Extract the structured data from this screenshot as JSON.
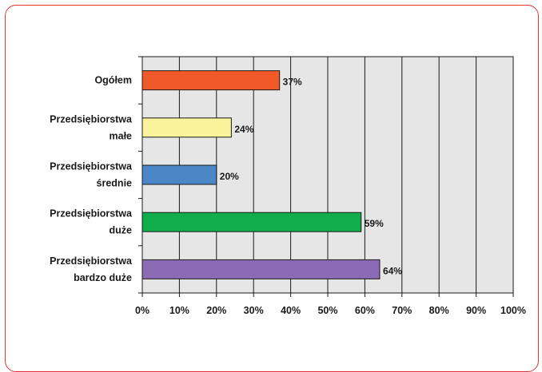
{
  "chart_data": {
    "type": "bar",
    "orientation": "horizontal",
    "categories": [
      [
        "Ogółem"
      ],
      [
        "Przedsiębiorstwa",
        "małe"
      ],
      [
        "Przedsiębiorstwa",
        "średnie"
      ],
      [
        "Przedsiębiorstwa",
        "duże"
      ],
      [
        "Przedsiębiorstwa",
        "bardzo duże"
      ]
    ],
    "values": [
      37,
      24,
      20,
      59,
      64
    ],
    "value_labels": [
      "37%",
      "24%",
      "20%",
      "59%",
      "64%"
    ],
    "colors": [
      "#f05a28",
      "#fbf49c",
      "#4b86c6",
      "#0fad4b",
      "#8a6bb4"
    ],
    "xlim": [
      0,
      100
    ],
    "x_ticks": [
      0,
      10,
      20,
      30,
      40,
      50,
      60,
      70,
      80,
      90,
      100
    ],
    "x_tick_labels": [
      "0%",
      "10%",
      "20%",
      "30%",
      "40%",
      "50%",
      "60%",
      "70%",
      "80%",
      "90%",
      "100%"
    ],
    "plot_background": "#e6e6e6",
    "grid": true,
    "frame_color": "#e8342f",
    "title": "",
    "xlabel": "",
    "ylabel": ""
  }
}
